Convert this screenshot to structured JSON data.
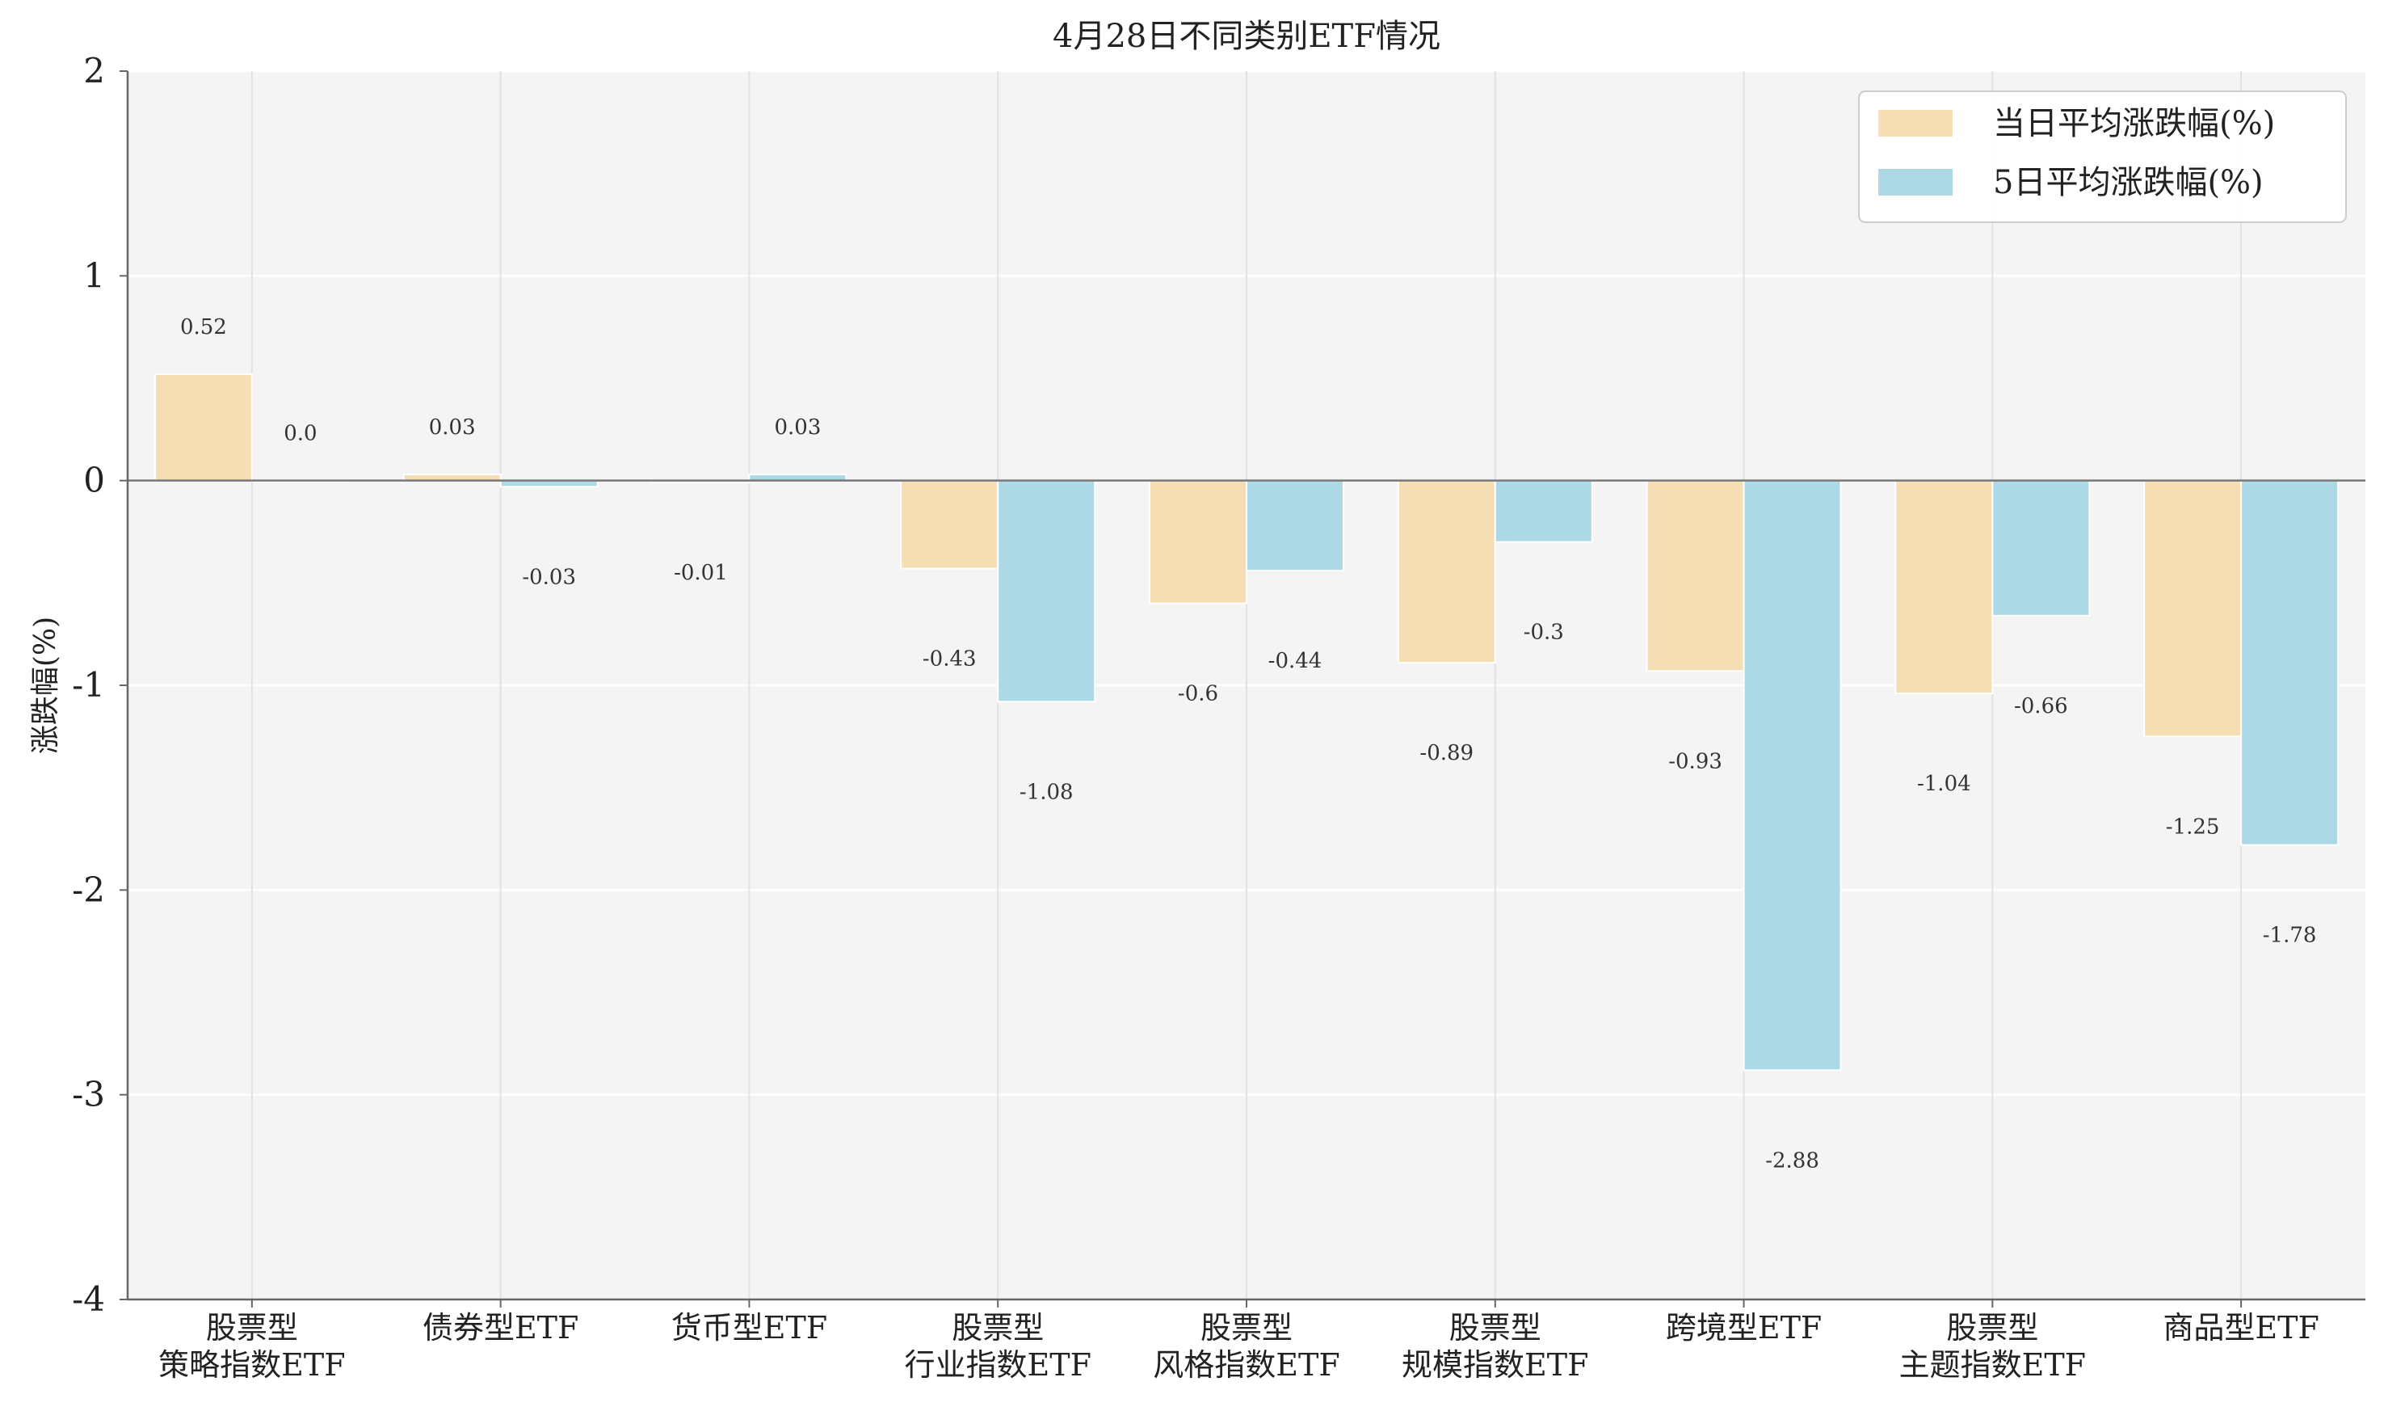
{
  "chart_data": {
    "type": "bar",
    "title": "4月28日不同类别ETF情况",
    "xlabel": "",
    "ylabel": "涨跌幅(%)",
    "ylim": [
      -4,
      2
    ],
    "yticks": [
      2,
      1,
      0,
      -1,
      -2,
      -3,
      -4
    ],
    "grid": true,
    "legend_position": "top-right",
    "categories": [
      [
        "股票型",
        "策略指数ETF"
      ],
      [
        "债券型ETF"
      ],
      [
        "货币型ETF"
      ],
      [
        "股票型",
        "行业指数ETF"
      ],
      [
        "股票型",
        "风格指数ETF"
      ],
      [
        "股票型",
        "规模指数ETF"
      ],
      [
        "跨境型ETF"
      ],
      [
        "股票型",
        "主题指数ETF"
      ],
      [
        "商品型ETF"
      ]
    ],
    "series": [
      {
        "name": "当日平均涨跌幅(%)",
        "color": "#f5deb3",
        "values": [
          0.52,
          0.03,
          -0.01,
          -0.43,
          -0.6,
          -0.89,
          -0.93,
          -1.04,
          -1.25
        ],
        "labels": [
          "0.52",
          "0.03",
          "-0.01",
          "-0.43",
          "-0.6",
          "-0.89",
          "-0.93",
          "-1.04",
          "-1.25"
        ]
      },
      {
        "name": "5日平均涨跌幅(%)",
        "color": "#add8e6",
        "values": [
          0.0,
          -0.03,
          0.03,
          -1.08,
          -0.44,
          -0.3,
          -2.88,
          -0.66,
          -1.78
        ],
        "labels": [
          "0.0",
          "-0.03",
          "0.03",
          "-1.08",
          "-0.44",
          "-0.3",
          "-2.88",
          "-0.66",
          "-1.78"
        ]
      }
    ]
  }
}
